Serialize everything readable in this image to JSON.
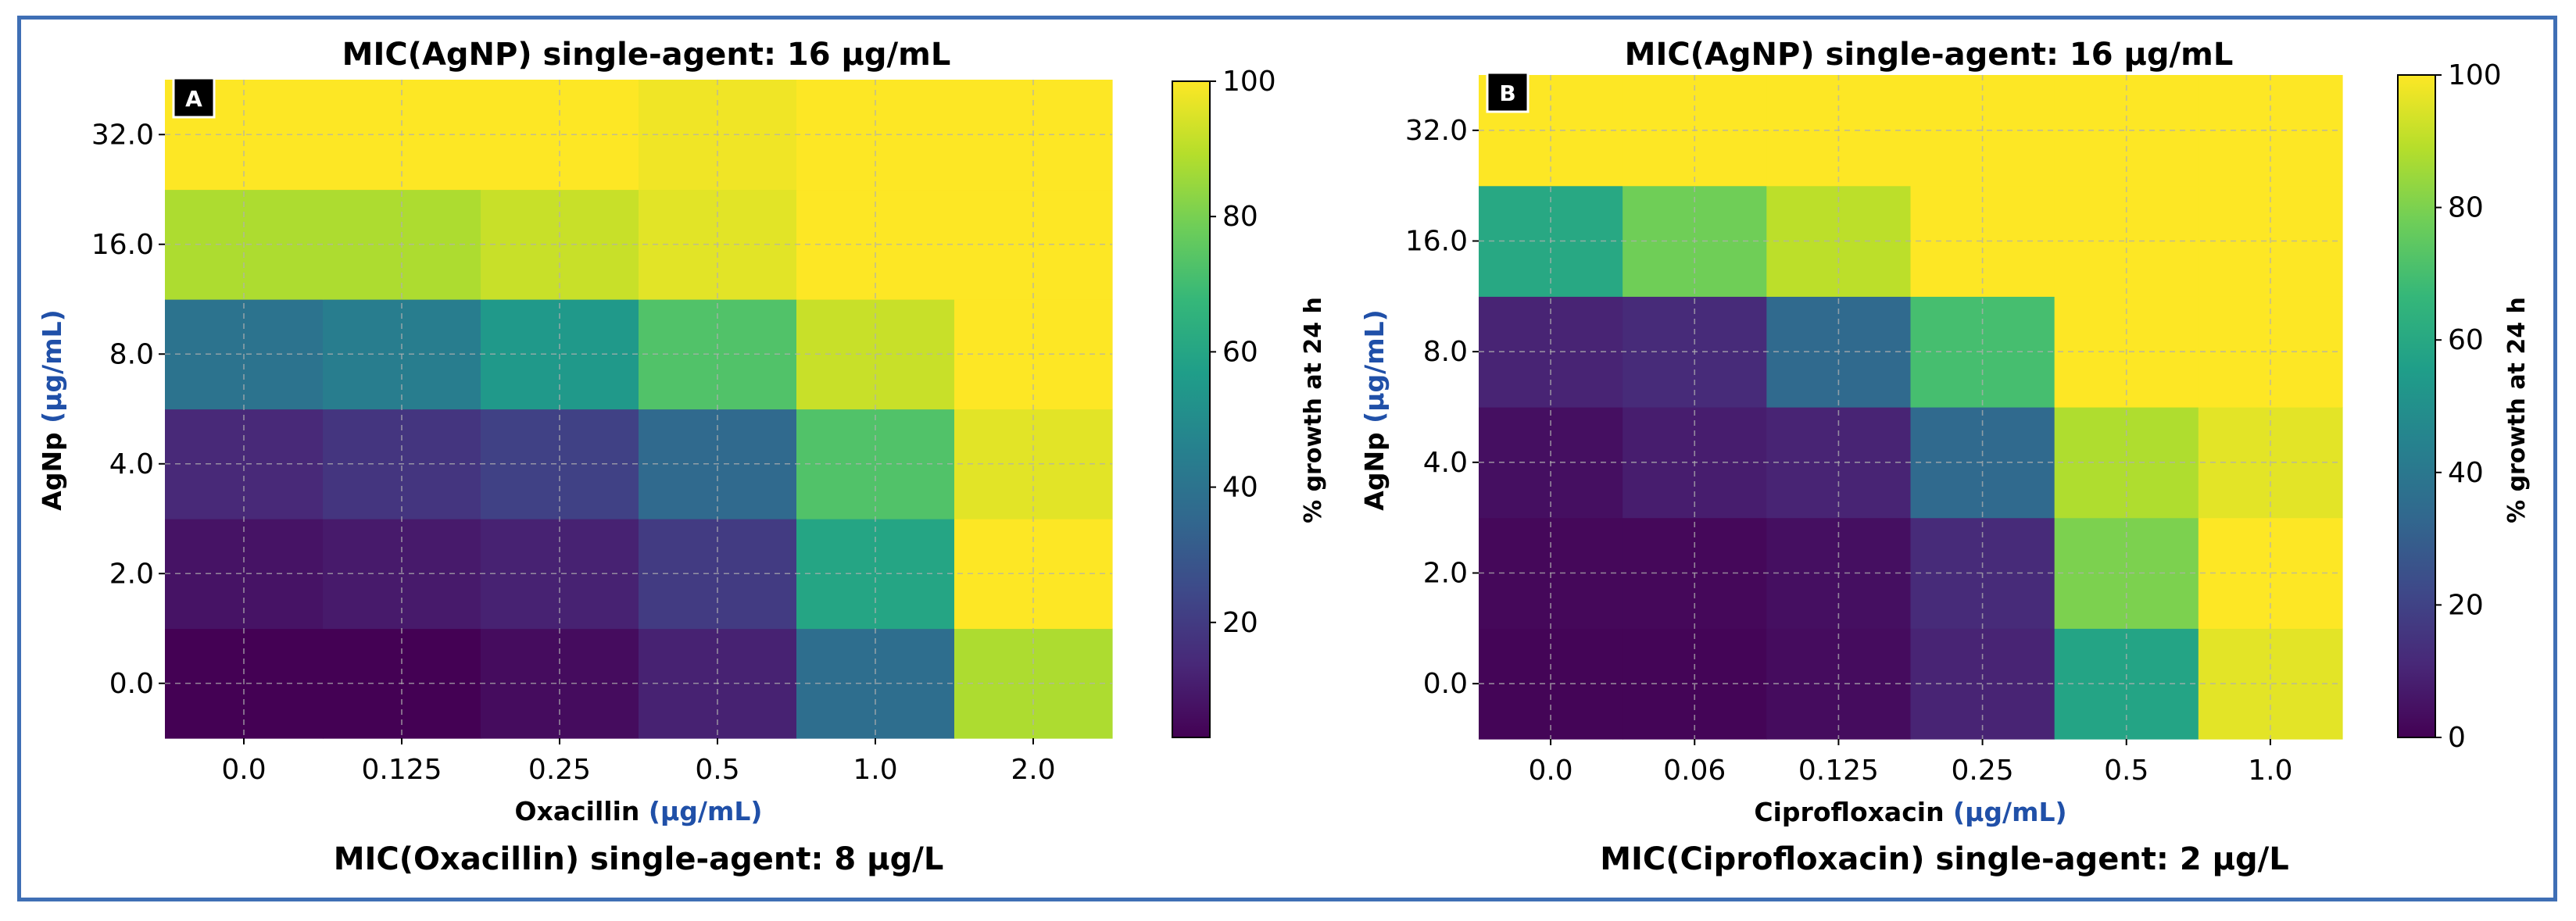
{
  "figure": {
    "border_color": "#3f6fb5"
  },
  "colormap": [
    "#440154",
    "#482878",
    "#3e4989",
    "#31688e",
    "#26828e",
    "#1f9e89",
    "#35b779",
    "#6ece58",
    "#b5de2b",
    "#fde725"
  ],
  "chart_data": [
    {
      "type": "heatmap",
      "panel_label": "A",
      "title": "MIC(AgNP) single-agent: 16 μg/mL",
      "footer": "MIC(Oxacillin) single-agent: 8 μg/L",
      "xlabel": "Oxacillin",
      "xlabel_unit": "(μg/mL)",
      "ylabel": "AgNp",
      "ylabel_unit": "(μg/mL)",
      "x_ticks": [
        "0.0",
        "0.125",
        "0.25",
        "0.5",
        "1.0",
        "2.0"
      ],
      "y_ticks": [
        "0.0",
        "2.0",
        "4.0",
        "8.0",
        "16.0",
        "32.0"
      ],
      "values": [
        [
          3,
          2,
          6,
          12,
          38,
          88
        ],
        [
          8,
          10,
          12,
          20,
          60,
          100
        ],
        [
          14,
          18,
          22,
          36,
          73,
          96
        ],
        [
          40,
          44,
          55,
          73,
          92,
          100
        ],
        [
          88,
          88,
          92,
          96,
          100,
          100
        ],
        [
          100,
          100,
          100,
          98,
          100,
          100
        ]
      ],
      "colorbar": {
        "label": "% growth at 24 h",
        "range": [
          3,
          100
        ],
        "ticks": [
          20,
          40,
          60,
          80,
          100
        ]
      }
    },
    {
      "type": "heatmap",
      "panel_label": "B",
      "title": "MIC(AgNP) single-agent: 16 μg/mL",
      "footer": "MIC(Ciprofloxacin) single-agent: 2 μg/L",
      "xlabel": "Ciprofloxacin",
      "xlabel_unit": "(μg/mL)",
      "ylabel": "AgNp",
      "ylabel_unit": "(μg/mL)",
      "x_ticks": [
        "0.0",
        "0.06",
        "0.125",
        "0.25",
        "0.5",
        "1.0"
      ],
      "y_ticks": [
        "0.0",
        "2.0",
        "4.0",
        "8.0",
        "16.0",
        "32.0"
      ],
      "values": [
        [
          1,
          1,
          3,
          10,
          58,
          96
        ],
        [
          2,
          2,
          4,
          12,
          80,
          100
        ],
        [
          4,
          8,
          10,
          34,
          88,
          96
        ],
        [
          10,
          12,
          34,
          70,
          100,
          100
        ],
        [
          60,
          78,
          90,
          100,
          100,
          100
        ],
        [
          100,
          100,
          100,
          100,
          100,
          100
        ]
      ],
      "colorbar": {
        "label": "% growth at 24 h",
        "range": [
          0,
          100
        ],
        "ticks": [
          0,
          20,
          40,
          60,
          80,
          100
        ]
      }
    }
  ]
}
